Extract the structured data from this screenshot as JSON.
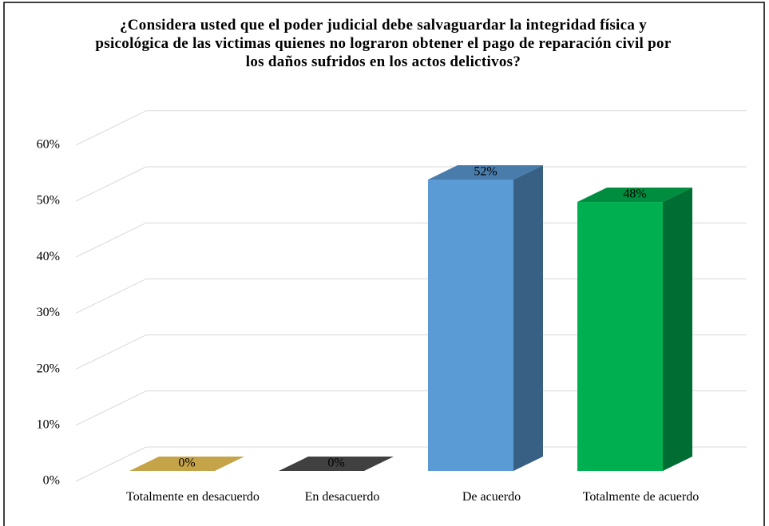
{
  "chart_data": {
    "type": "bar3d",
    "title": "¿Considera usted que el poder judicial debe salvaguardar la integridad física y psicológica de las victimas quienes no lograron obtener el pago de reparación civil por los daños sufridos en los actos delictivos?",
    "categories": [
      "Totalmente en desacuerdo",
      "En desacuerdo",
      "De acuerdo",
      "Totalmente de acuerdo"
    ],
    "values": [
      0,
      0,
      52,
      48
    ],
    "value_labels": [
      "0%",
      "0%",
      "52%",
      "48%"
    ],
    "colors": [
      "#c5a449",
      "#404040",
      "#5b9bd5",
      "#00b050"
    ],
    "ylim": [
      0,
      60
    ],
    "yticks": [
      {
        "value": 0,
        "label": "0%"
      },
      {
        "value": 10,
        "label": "10%"
      },
      {
        "value": 20,
        "label": "20%"
      },
      {
        "value": 30,
        "label": "30%"
      },
      {
        "value": 40,
        "label": "40%"
      },
      {
        "value": 50,
        "label": "50%"
      },
      {
        "value": 60,
        "label": "60%"
      }
    ],
    "grid": true
  }
}
